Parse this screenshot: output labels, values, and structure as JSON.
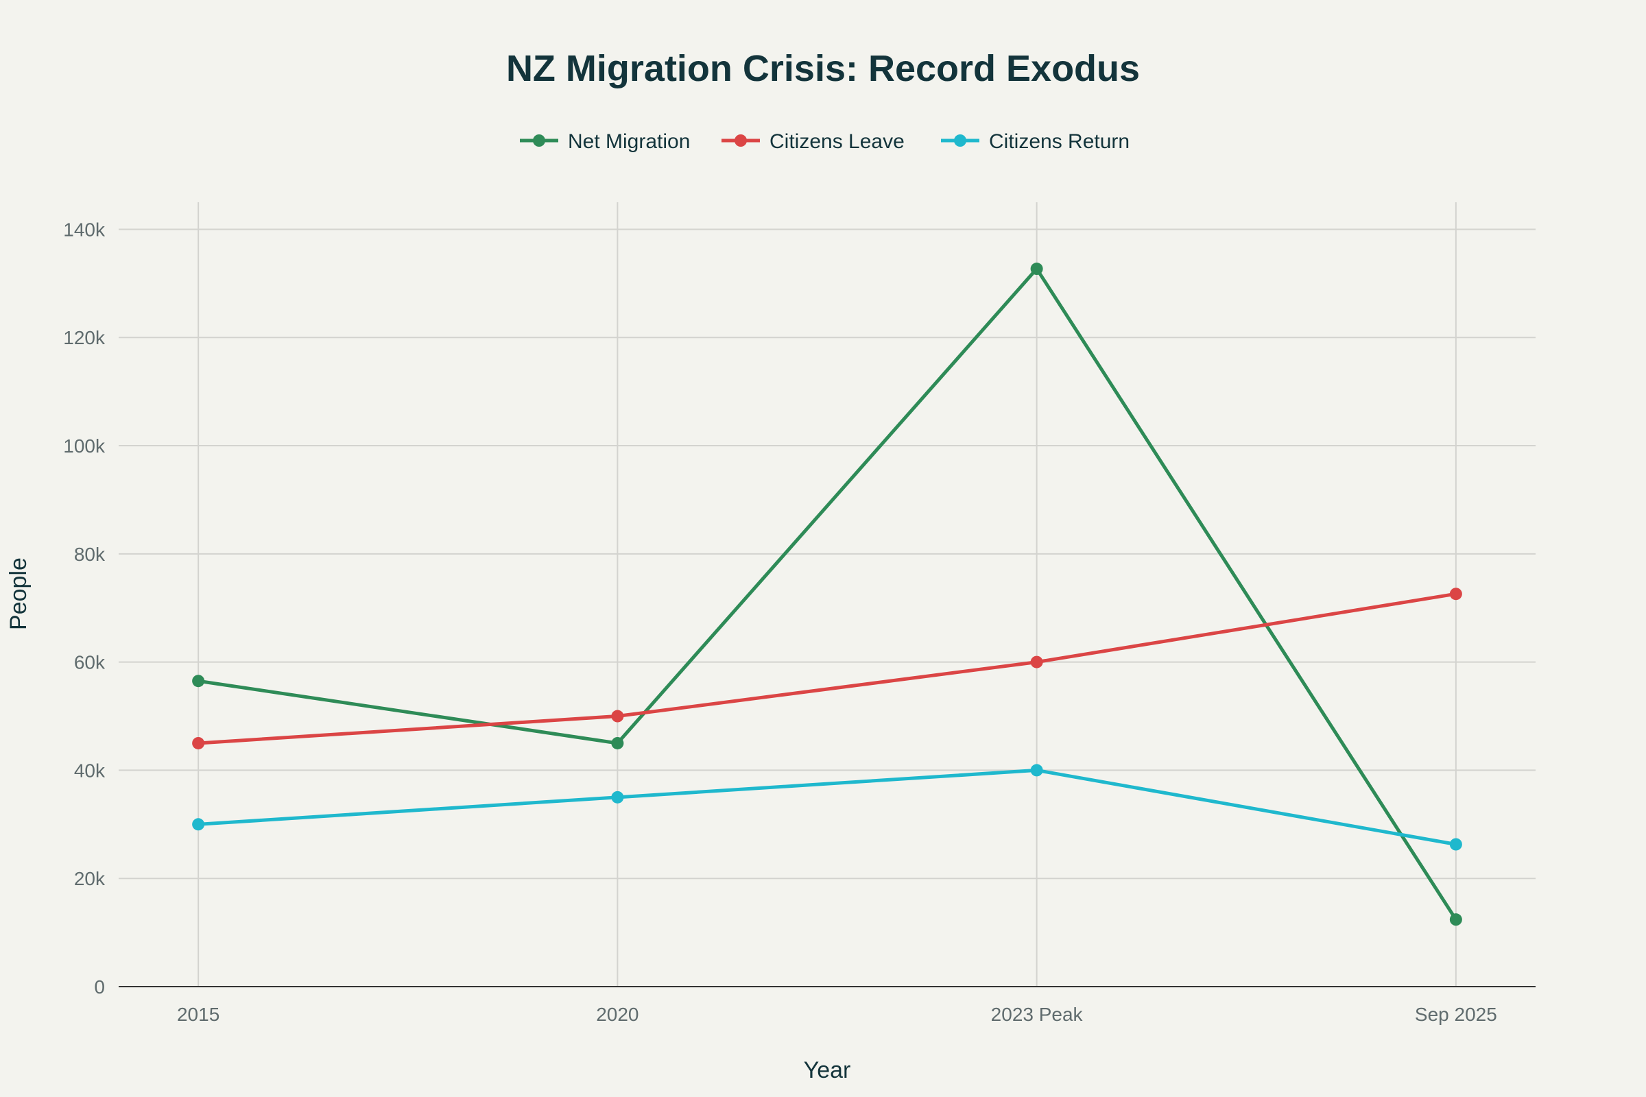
{
  "chart_data": {
    "type": "line",
    "title": "NZ Migration Crisis: Record Exodus",
    "xlabel": "Year",
    "ylabel": "People",
    "categories": [
      "2015",
      "2020",
      "2023 Peak",
      "Sep 2025"
    ],
    "ylim": [
      0,
      145000
    ],
    "yticks": [
      0,
      20000,
      40000,
      60000,
      80000,
      100000,
      120000,
      140000
    ],
    "ytick_labels": [
      "0",
      "20k",
      "40k",
      "60k",
      "80k",
      "100k",
      "120k",
      "140k"
    ],
    "grid": true,
    "legend_position": "top-center",
    "series": [
      {
        "name": "Net Migration",
        "color": "#2E8B57",
        "values": [
          56500,
          45000,
          132700,
          12400
        ]
      },
      {
        "name": "Citizens Leave",
        "color": "#DB4545",
        "values": [
          45000,
          50000,
          60000,
          72600
        ]
      },
      {
        "name": "Citizens Return",
        "color": "#1FB8CD",
        "values": [
          30000,
          35000,
          40000,
          26300
        ]
      }
    ]
  }
}
